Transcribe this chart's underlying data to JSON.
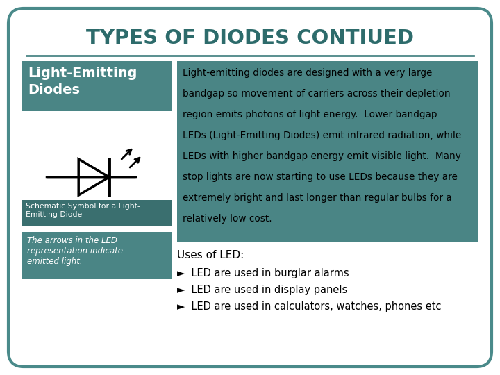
{
  "title": "TYPES OF DIODES CONTIUED",
  "title_color": "#2d6b6b",
  "background_color": "#ffffff",
  "border_color": "#4a8a8a",
  "teal_color": "#4a8585",
  "teal_dark": "#3a6f6f",
  "left_label": "Light-Emitting\nDiodes",
  "schematic_label": "Schematic Symbol for a Light-\nEmitting Diode",
  "italic_label": "The arrows in the LED\nrepresentation indicate\nemitted light.",
  "main_text_lines": [
    "Light-emitting diodes are designed with a very large",
    "bandgap so movement of carriers across their depletion",
    "region emits photons of light energy.  Lower bandgap",
    "LEDs (Light-Emitting Diodes) emit infrared radiation, while",
    "LEDs with higher bandgap energy emit visible light.  Many",
    "stop lights are now starting to use LEDs because they are",
    "extremely bright and last longer than regular bulbs for a",
    "relatively low cost."
  ],
  "uses_title": "Uses of LED:",
  "uses_items": [
    "LED are used in burglar alarms",
    "LED are used in display panels",
    "LED are used in calculators, watches, phones etc"
  ]
}
